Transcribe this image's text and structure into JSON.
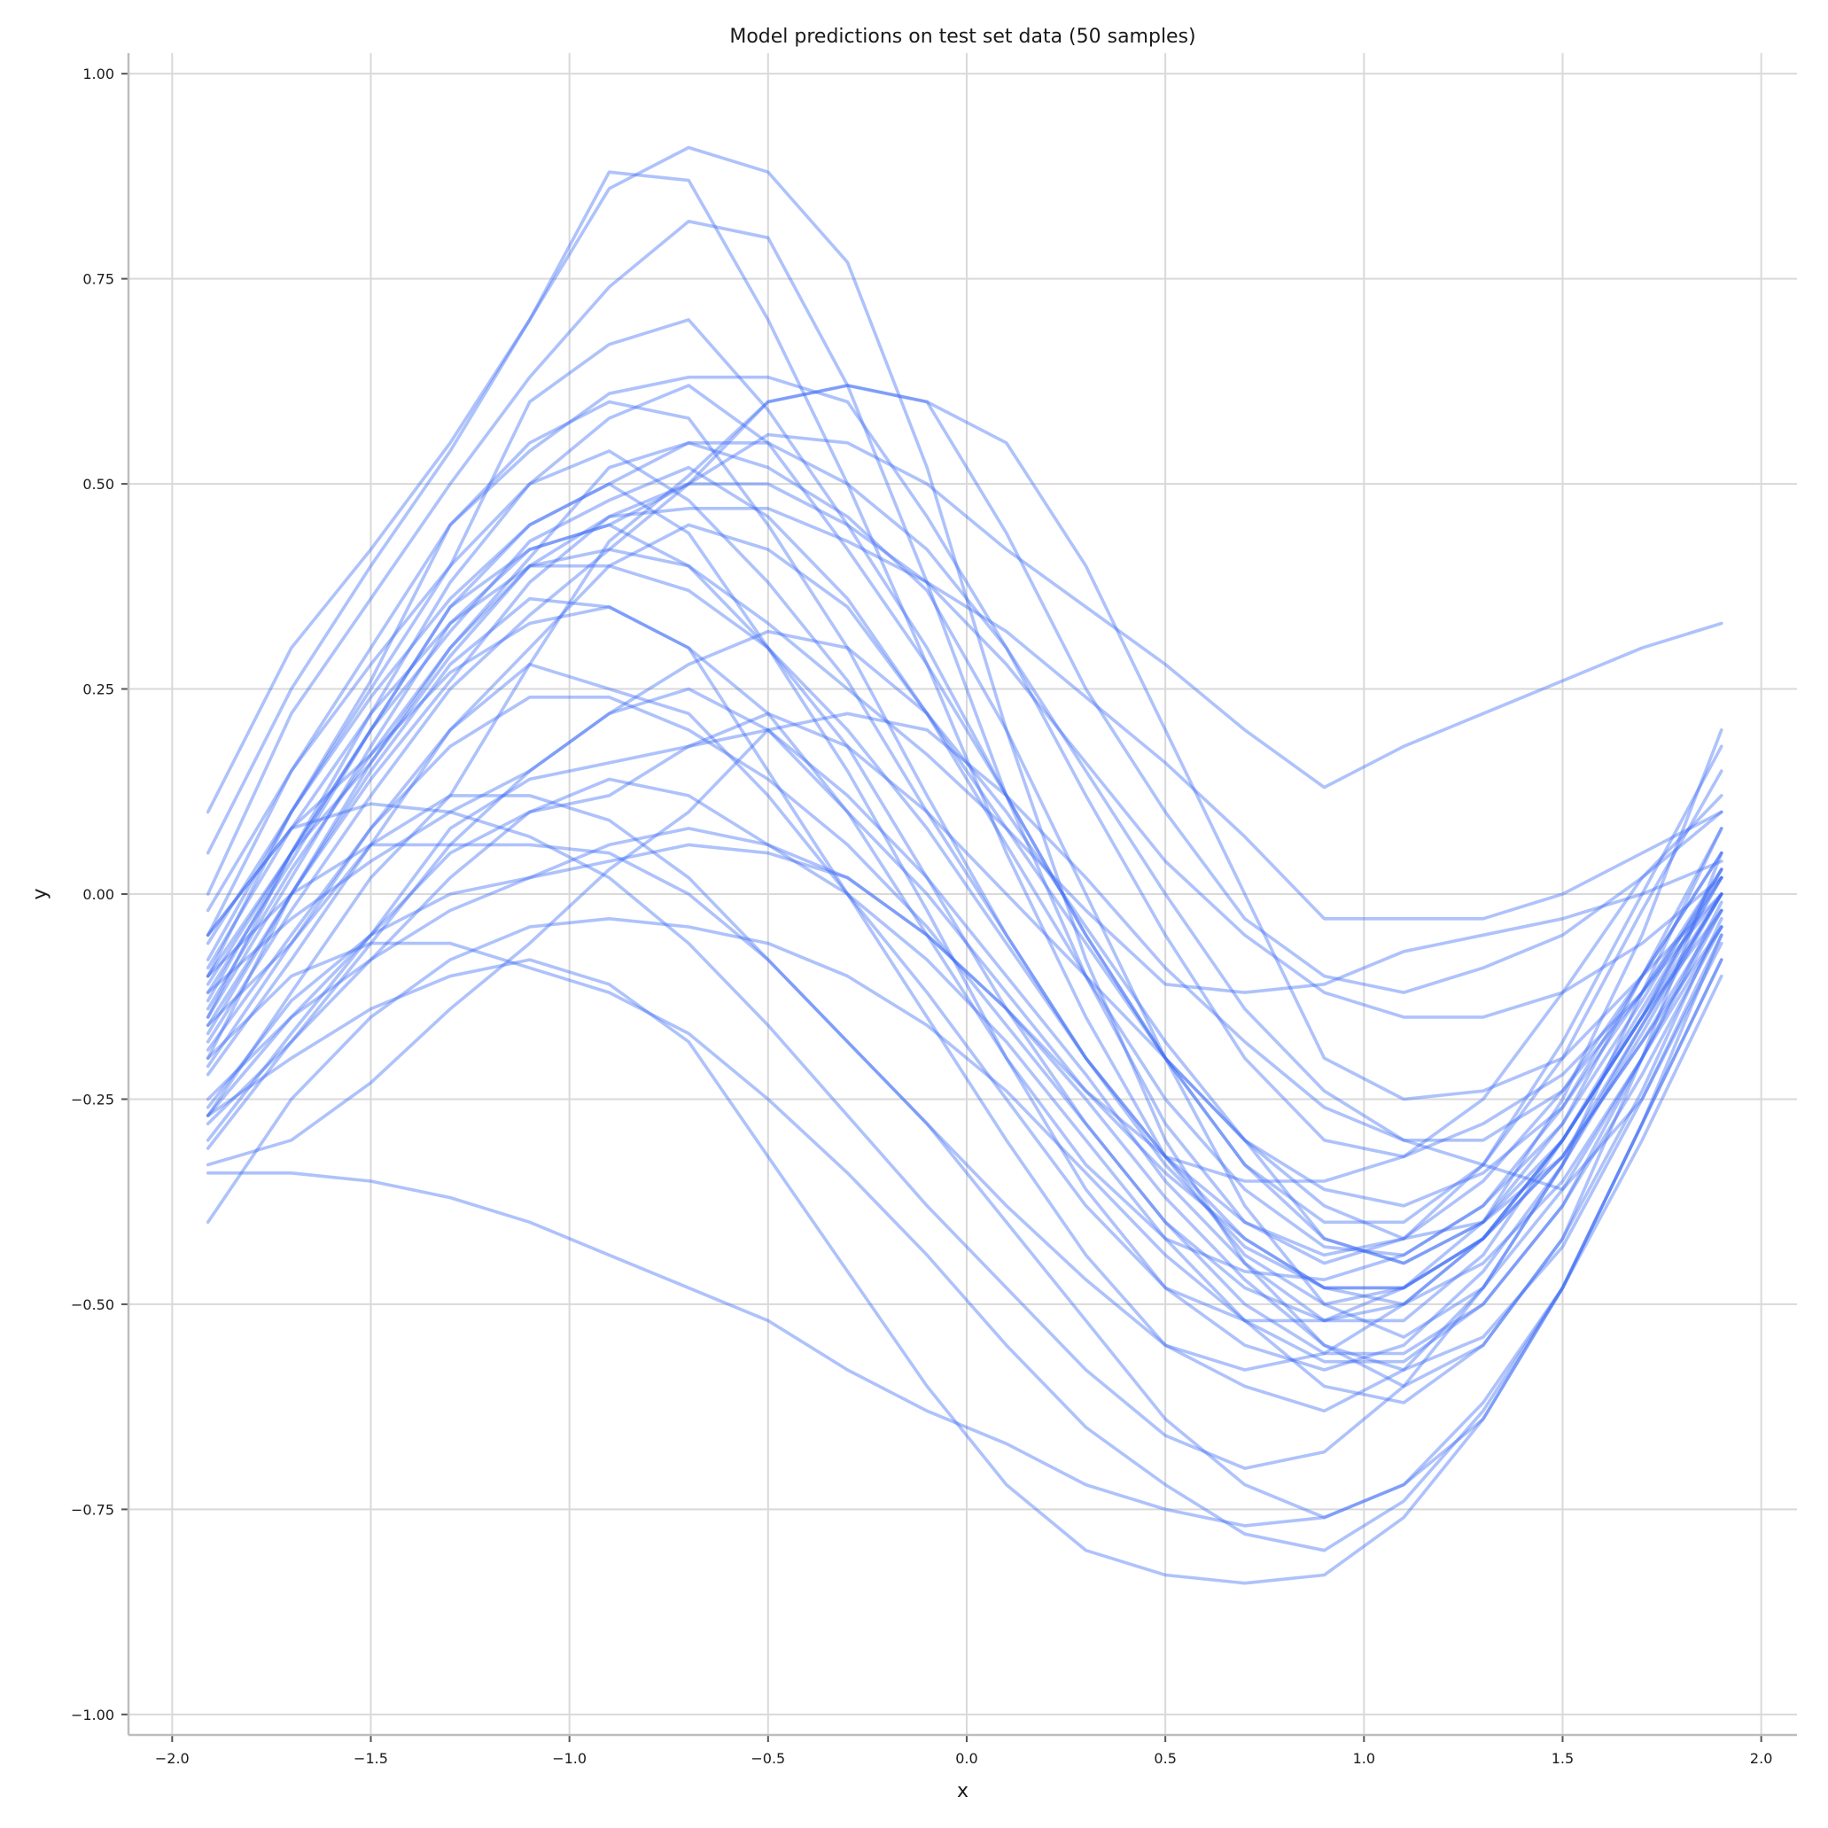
{
  "chart_data": {
    "type": "line",
    "title": "Model predictions on test set data (50 samples)",
    "xlabel": "x",
    "ylabel": "y",
    "xlim": [
      -2.11,
      2.09
    ],
    "ylim": [
      -1.025,
      1.025
    ],
    "xticks": [
      "−2.0",
      "−1.5",
      "−1.0",
      "−0.5",
      "0.0",
      "0.5",
      "1.0",
      "1.5",
      "2.0"
    ],
    "yticks": [
      "1.00",
      "0.75",
      "0.50",
      "0.25",
      "0.00",
      "−0.25",
      "−0.50",
      "−0.75",
      "−1.00"
    ],
    "grid": true,
    "legend": "none",
    "line_color": "#3d6ef5",
    "x": [
      -1.91,
      -1.7,
      -1.5,
      -1.3,
      -1.1,
      -0.9,
      -0.7,
      -0.5,
      -0.3,
      -0.1,
      0.1,
      0.3,
      0.5,
      0.7,
      0.9,
      1.1,
      1.3,
      1.5,
      1.7,
      1.9
    ],
    "series": [
      {
        "values": [
          0.1,
          0.3,
          0.42,
          0.55,
          0.7,
          0.86,
          0.91,
          0.88,
          0.77,
          0.52,
          0.2,
          -0.08,
          -0.3,
          -0.45,
          -0.55,
          -0.6,
          -0.55,
          -0.42,
          -0.2,
          0.05
        ]
      },
      {
        "values": [
          0.05,
          0.25,
          0.4,
          0.54,
          0.7,
          0.88,
          0.87,
          0.7,
          0.5,
          0.28,
          0.05,
          -0.15,
          -0.32,
          -0.44,
          -0.5,
          -0.48,
          -0.4,
          -0.25,
          -0.05,
          0.2
        ]
      },
      {
        "values": [
          0.0,
          0.22,
          0.36,
          0.5,
          0.63,
          0.74,
          0.82,
          0.8,
          0.62,
          0.38,
          0.12,
          -0.1,
          -0.28,
          -0.4,
          -0.45,
          -0.42,
          -0.33,
          -0.18,
          0.0,
          0.18
        ]
      },
      {
        "values": [
          -0.05,
          0.15,
          0.28,
          0.4,
          0.6,
          0.67,
          0.7,
          0.59,
          0.45,
          0.3,
          0.12,
          -0.05,
          -0.2,
          -0.33,
          -0.4,
          -0.4,
          -0.33,
          -0.2,
          -0.02,
          0.15
        ]
      },
      {
        "values": [
          -0.1,
          0.1,
          0.26,
          0.45,
          0.54,
          0.61,
          0.63,
          0.63,
          0.6,
          0.46,
          0.3,
          0.12,
          -0.05,
          -0.2,
          -0.3,
          -0.32,
          -0.25,
          -0.12,
          0.02,
          0.12
        ]
      },
      {
        "values": [
          -0.15,
          0.05,
          0.22,
          0.38,
          0.5,
          0.58,
          0.62,
          0.55,
          0.42,
          0.28,
          0.12,
          -0.05,
          -0.2,
          -0.33,
          -0.42,
          -0.45,
          -0.4,
          -0.28,
          -0.1,
          0.08
        ]
      },
      {
        "values": [
          -0.2,
          0.0,
          0.16,
          0.3,
          0.41,
          0.52,
          0.55,
          0.52,
          0.46,
          0.37,
          0.2,
          0.0,
          -0.2,
          -0.38,
          -0.5,
          -0.54,
          -0.48,
          -0.33,
          -0.12,
          0.08
        ]
      },
      {
        "values": [
          -0.27,
          -0.12,
          0.02,
          0.12,
          0.28,
          0.43,
          0.51,
          0.6,
          0.62,
          0.6,
          0.44,
          0.25,
          0.1,
          -0.03,
          -0.1,
          -0.12,
          -0.09,
          -0.05,
          0.02,
          0.1
        ]
      },
      {
        "values": [
          -0.13,
          0.05,
          0.2,
          0.35,
          0.42,
          0.45,
          0.5,
          0.56,
          0.55,
          0.5,
          0.42,
          0.35,
          0.28,
          0.2,
          0.13,
          0.18,
          0.22,
          0.26,
          0.3,
          0.33
        ]
      },
      {
        "values": [
          -0.17,
          0.0,
          0.14,
          0.26,
          0.38,
          0.46,
          0.47,
          0.47,
          0.43,
          0.38,
          0.32,
          0.24,
          0.16,
          0.07,
          -0.03,
          -0.03,
          -0.03,
          0.0,
          0.05,
          0.1
        ]
      },
      {
        "values": [
          -0.1,
          0.05,
          0.16,
          0.29,
          0.4,
          0.42,
          0.4,
          0.33,
          0.25,
          0.17,
          0.08,
          -0.02,
          -0.11,
          -0.12,
          -0.11,
          -0.07,
          -0.05,
          -0.03,
          0.0,
          0.04
        ]
      },
      {
        "values": [
          -0.05,
          0.08,
          0.17,
          0.27,
          0.33,
          0.35,
          0.3,
          0.15,
          0.0,
          -0.15,
          -0.3,
          -0.44,
          -0.55,
          -0.6,
          -0.63,
          -0.58,
          -0.48,
          -0.36,
          -0.2,
          -0.02
        ]
      },
      {
        "values": [
          -0.22,
          -0.08,
          0.06,
          0.2,
          0.28,
          0.25,
          0.22,
          0.12,
          0.0,
          -0.12,
          -0.25,
          -0.38,
          -0.48,
          -0.52,
          -0.52,
          -0.48,
          -0.42,
          -0.3,
          -0.15,
          0.0
        ]
      },
      {
        "values": [
          -0.28,
          -0.18,
          -0.06,
          0.06,
          0.15,
          0.22,
          0.25,
          0.2,
          0.1,
          0.0,
          -0.12,
          -0.24,
          -0.32,
          -0.35,
          -0.35,
          -0.32,
          -0.28,
          -0.22,
          -0.12,
          0.0
        ]
      },
      {
        "values": [
          -0.3,
          -0.17,
          -0.05,
          0.08,
          0.14,
          0.16,
          0.18,
          0.22,
          0.18,
          0.1,
          0.0,
          -0.1,
          -0.2,
          -0.3,
          -0.42,
          -0.45,
          -0.4,
          -0.3,
          -0.15,
          0.03
        ]
      },
      {
        "values": [
          -0.16,
          -0.06,
          0.06,
          0.12,
          0.12,
          0.09,
          0.02,
          -0.08,
          -0.18,
          -0.28,
          -0.38,
          -0.47,
          -0.55,
          -0.58,
          -0.56,
          -0.5,
          -0.42,
          -0.3,
          -0.15,
          -0.02
        ]
      },
      {
        "values": [
          -0.05,
          0.08,
          0.11,
          0.1,
          0.07,
          0.02,
          -0.06,
          -0.16,
          -0.27,
          -0.38,
          -0.48,
          -0.58,
          -0.66,
          -0.7,
          -0.68,
          -0.6,
          -0.48,
          -0.33,
          -0.16,
          0.0
        ]
      },
      {
        "values": [
          -0.1,
          0.0,
          0.06,
          0.06,
          0.06,
          0.05,
          0.0,
          -0.08,
          -0.18,
          -0.28,
          -0.4,
          -0.52,
          -0.64,
          -0.72,
          -0.76,
          -0.72,
          -0.62,
          -0.48,
          -0.28,
          -0.05
        ]
      },
      {
        "values": [
          -0.26,
          -0.13,
          -0.05,
          0.0,
          0.02,
          0.04,
          0.06,
          0.05,
          0.02,
          -0.05,
          -0.14,
          -0.25,
          -0.37,
          -0.47,
          -0.55,
          -0.58,
          -0.54,
          -0.43,
          -0.25,
          -0.05
        ]
      },
      {
        "values": [
          -0.31,
          -0.18,
          -0.08,
          0.02,
          0.1,
          0.14,
          0.12,
          0.06,
          0.0,
          -0.08,
          -0.18,
          -0.3,
          -0.42,
          -0.52,
          -0.6,
          -0.62,
          -0.55,
          -0.42,
          -0.24,
          -0.03
        ]
      },
      {
        "values": [
          -0.27,
          -0.15,
          -0.05,
          0.05,
          0.1,
          0.12,
          0.18,
          0.2,
          0.12,
          0.02,
          -0.1,
          -0.22,
          -0.35,
          -0.45,
          -0.52,
          -0.52,
          -0.44,
          -0.3,
          -0.15,
          0.02
        ]
      },
      {
        "values": [
          -0.25,
          -0.15,
          -0.08,
          -0.02,
          0.02,
          0.06,
          0.08,
          0.06,
          0.02,
          -0.05,
          -0.14,
          -0.24,
          -0.34,
          -0.42,
          -0.48,
          -0.5,
          -0.45,
          -0.35,
          -0.2,
          -0.04
        ]
      },
      {
        "values": [
          -0.33,
          -0.3,
          -0.23,
          -0.14,
          -0.06,
          0.03,
          0.1,
          0.2,
          0.22,
          0.2,
          0.12,
          0.02,
          -0.09,
          -0.18,
          -0.26,
          -0.3,
          -0.33,
          -0.36,
          -0.25,
          -0.06
        ]
      },
      {
        "values": [
          -0.4,
          -0.25,
          -0.15,
          -0.08,
          -0.04,
          -0.03,
          -0.04,
          -0.06,
          -0.1,
          -0.16,
          -0.24,
          -0.34,
          -0.44,
          -0.52,
          -0.57,
          -0.57,
          -0.5,
          -0.38,
          -0.22,
          -0.04
        ]
      },
      {
        "values": [
          -0.34,
          -0.34,
          -0.35,
          -0.37,
          -0.4,
          -0.44,
          -0.48,
          -0.52,
          -0.58,
          -0.63,
          -0.67,
          -0.72,
          -0.75,
          -0.77,
          -0.76,
          -0.72,
          -0.64,
          -0.48,
          -0.28,
          -0.08
        ]
      },
      {
        "values": [
          -0.2,
          -0.1,
          -0.06,
          -0.06,
          -0.09,
          -0.12,
          -0.17,
          -0.25,
          -0.34,
          -0.44,
          -0.55,
          -0.65,
          -0.72,
          -0.78,
          -0.8,
          -0.74,
          -0.63,
          -0.48,
          -0.3,
          -0.1
        ]
      },
      {
        "values": [
          -0.27,
          -0.2,
          -0.14,
          -0.1,
          -0.08,
          -0.11,
          -0.18,
          -0.32,
          -0.46,
          -0.6,
          -0.72,
          -0.8,
          -0.83,
          -0.84,
          -0.83,
          -0.76,
          -0.64,
          -0.48,
          -0.28,
          -0.08
        ]
      },
      {
        "values": [
          -0.11,
          0.05,
          0.2,
          0.32,
          0.43,
          0.48,
          0.52,
          0.46,
          0.36,
          0.22,
          0.06,
          -0.1,
          -0.25,
          -0.36,
          -0.43,
          -0.44,
          -0.38,
          -0.26,
          -0.1,
          0.05
        ]
      },
      {
        "values": [
          -0.14,
          0.03,
          0.17,
          0.3,
          0.4,
          0.46,
          0.5,
          0.5,
          0.45,
          0.38,
          0.28,
          0.16,
          0.04,
          -0.05,
          -0.12,
          -0.15,
          -0.15,
          -0.12,
          -0.06,
          0.02
        ]
      },
      {
        "values": [
          -0.18,
          -0.02,
          0.12,
          0.25,
          0.34,
          0.42,
          0.5,
          0.6,
          0.62,
          0.6,
          0.55,
          0.4,
          0.2,
          0.0,
          -0.2,
          -0.25,
          -0.24,
          -0.2,
          -0.1,
          0.0
        ]
      },
      {
        "values": [
          -0.12,
          0.04,
          0.2,
          0.35,
          0.45,
          0.5,
          0.44,
          0.3,
          0.15,
          -0.02,
          -0.2,
          -0.36,
          -0.48,
          -0.55,
          -0.58,
          -0.55,
          -0.46,
          -0.33,
          -0.17,
          0.0
        ]
      },
      {
        "values": [
          -0.08,
          0.1,
          0.25,
          0.4,
          0.5,
          0.54,
          0.48,
          0.38,
          0.26,
          0.1,
          -0.05,
          -0.2,
          -0.32,
          -0.4,
          -0.44,
          -0.42,
          -0.35,
          -0.24,
          -0.1,
          0.05
        ]
      },
      {
        "values": [
          -0.16,
          0.0,
          0.15,
          0.28,
          0.36,
          0.35,
          0.3,
          0.22,
          0.1,
          -0.05,
          -0.2,
          -0.33,
          -0.42,
          -0.46,
          -0.47,
          -0.44,
          -0.38,
          -0.28,
          -0.13,
          0.03
        ]
      },
      {
        "values": [
          -0.02,
          0.15,
          0.3,
          0.45,
          0.55,
          0.6,
          0.58,
          0.45,
          0.3,
          0.12,
          -0.05,
          -0.2,
          -0.32,
          -0.42,
          -0.48,
          -0.48,
          -0.42,
          -0.32,
          -0.16,
          0.0
        ]
      },
      {
        "values": [
          -0.12,
          -0.03,
          0.04,
          0.1,
          0.15,
          0.22,
          0.28,
          0.32,
          0.3,
          0.22,
          0.1,
          -0.04,
          -0.18,
          -0.3,
          -0.38,
          -0.42,
          -0.4,
          -0.32,
          -0.18,
          -0.02
        ]
      },
      {
        "values": [
          -0.06,
          0.1,
          0.24,
          0.36,
          0.45,
          0.5,
          0.55,
          0.55,
          0.5,
          0.42,
          0.3,
          0.15,
          0.0,
          -0.14,
          -0.24,
          -0.3,
          -0.3,
          -0.24,
          -0.12,
          0.02
        ]
      },
      {
        "values": [
          -0.19,
          -0.05,
          0.08,
          0.2,
          0.3,
          0.4,
          0.45,
          0.42,
          0.35,
          0.22,
          0.08,
          -0.06,
          -0.2,
          -0.3,
          -0.36,
          -0.38,
          -0.34,
          -0.26,
          -0.12,
          0.03
        ]
      },
      {
        "values": [
          -0.15,
          0.02,
          0.18,
          0.33,
          0.42,
          0.45,
          0.4,
          0.3,
          0.18,
          0.02,
          -0.14,
          -0.28,
          -0.4,
          -0.48,
          -0.52,
          -0.5,
          -0.42,
          -0.3,
          -0.14,
          0.02
        ]
      },
      {
        "values": [
          -0.09,
          0.08,
          0.22,
          0.33,
          0.4,
          0.4,
          0.37,
          0.3,
          0.2,
          0.08,
          -0.06,
          -0.2,
          -0.33,
          -0.43,
          -0.48,
          -0.48,
          -0.42,
          -0.32,
          -0.18,
          -0.04
        ]
      },
      {
        "values": [
          -0.21,
          -0.06,
          0.08,
          0.18,
          0.24,
          0.24,
          0.2,
          0.14,
          0.06,
          -0.04,
          -0.16,
          -0.28,
          -0.4,
          -0.5,
          -0.56,
          -0.56,
          -0.5,
          -0.38,
          -0.2,
          -0.01
        ]
      }
    ]
  }
}
